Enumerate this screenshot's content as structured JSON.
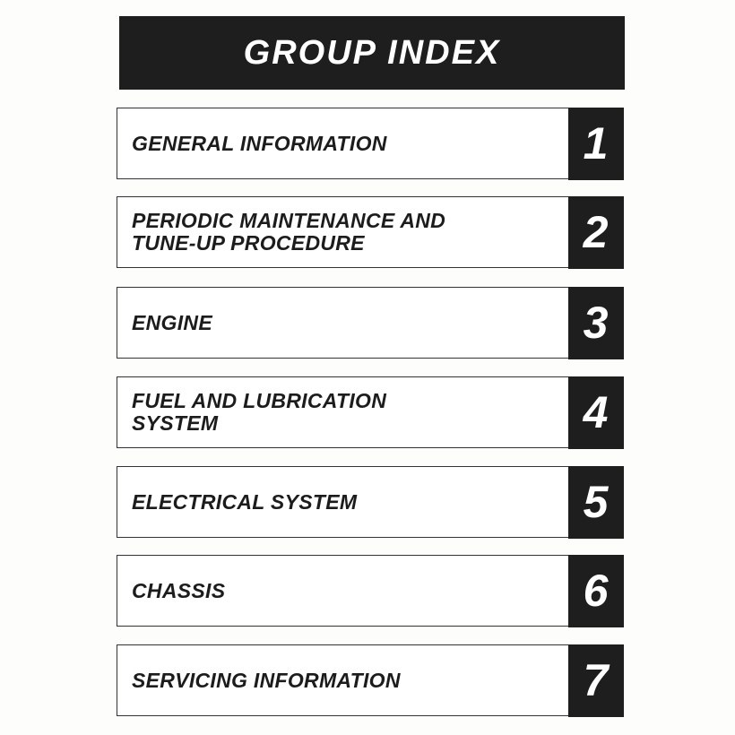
{
  "title": "GROUP INDEX",
  "sections": [
    {
      "number": "1",
      "lines": [
        "GENERAL INFORMATION"
      ]
    },
    {
      "number": "2",
      "lines": [
        "PERIODIC MAINTENANCE AND",
        "TUNE-UP PROCEDURE"
      ]
    },
    {
      "number": "3",
      "lines": [
        "ENGINE"
      ]
    },
    {
      "number": "4",
      "lines": [
        "FUEL AND LUBRICATION",
        "SYSTEM"
      ]
    },
    {
      "number": "5",
      "lines": [
        "ELECTRICAL SYSTEM"
      ]
    },
    {
      "number": "6",
      "lines": [
        "CHASSIS"
      ]
    },
    {
      "number": "7",
      "lines": [
        "SERVICING INFORMATION"
      ]
    }
  ]
}
